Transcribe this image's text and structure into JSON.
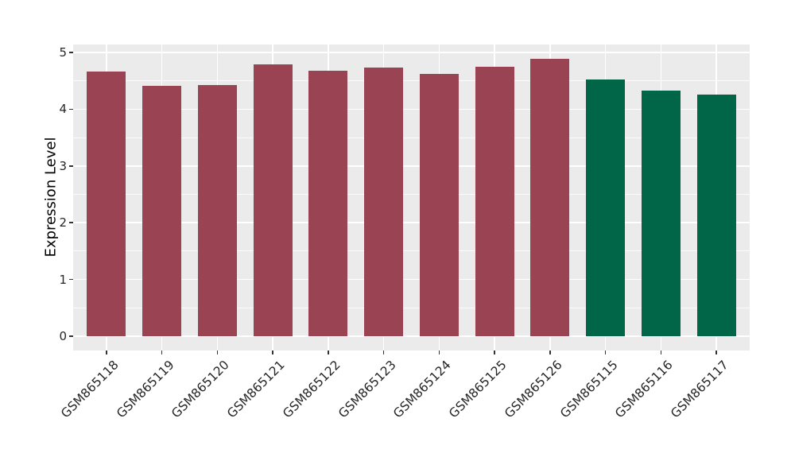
{
  "chart_data": {
    "type": "bar",
    "title": "",
    "xlabel": "",
    "ylabel": "Expression Level",
    "categories": [
      "GSM865118",
      "GSM865119",
      "GSM865120",
      "GSM865121",
      "GSM865122",
      "GSM865123",
      "GSM865124",
      "GSM865125",
      "GSM865126",
      "GSM865115",
      "GSM865116",
      "GSM865117"
    ],
    "values": [
      4.66,
      4.41,
      4.43,
      4.79,
      4.68,
      4.74,
      4.62,
      4.75,
      4.89,
      4.52,
      4.33,
      4.26
    ],
    "bar_colors": [
      "#9a4352",
      "#9a4352",
      "#9a4352",
      "#9a4352",
      "#9a4352",
      "#9a4352",
      "#9a4352",
      "#9a4352",
      "#9a4352",
      "#006647",
      "#006647",
      "#006647"
    ],
    "yticks": [
      0,
      1,
      2,
      3,
      4,
      5
    ],
    "ylim": [
      0,
      5.14
    ],
    "minor_gridline_step": 0.5,
    "grid": true,
    "legend": "none",
    "panel_bg": "#ebebeb",
    "grid_color": "#ffffff",
    "tick_color": "#333333",
    "label_color": "#262626"
  }
}
